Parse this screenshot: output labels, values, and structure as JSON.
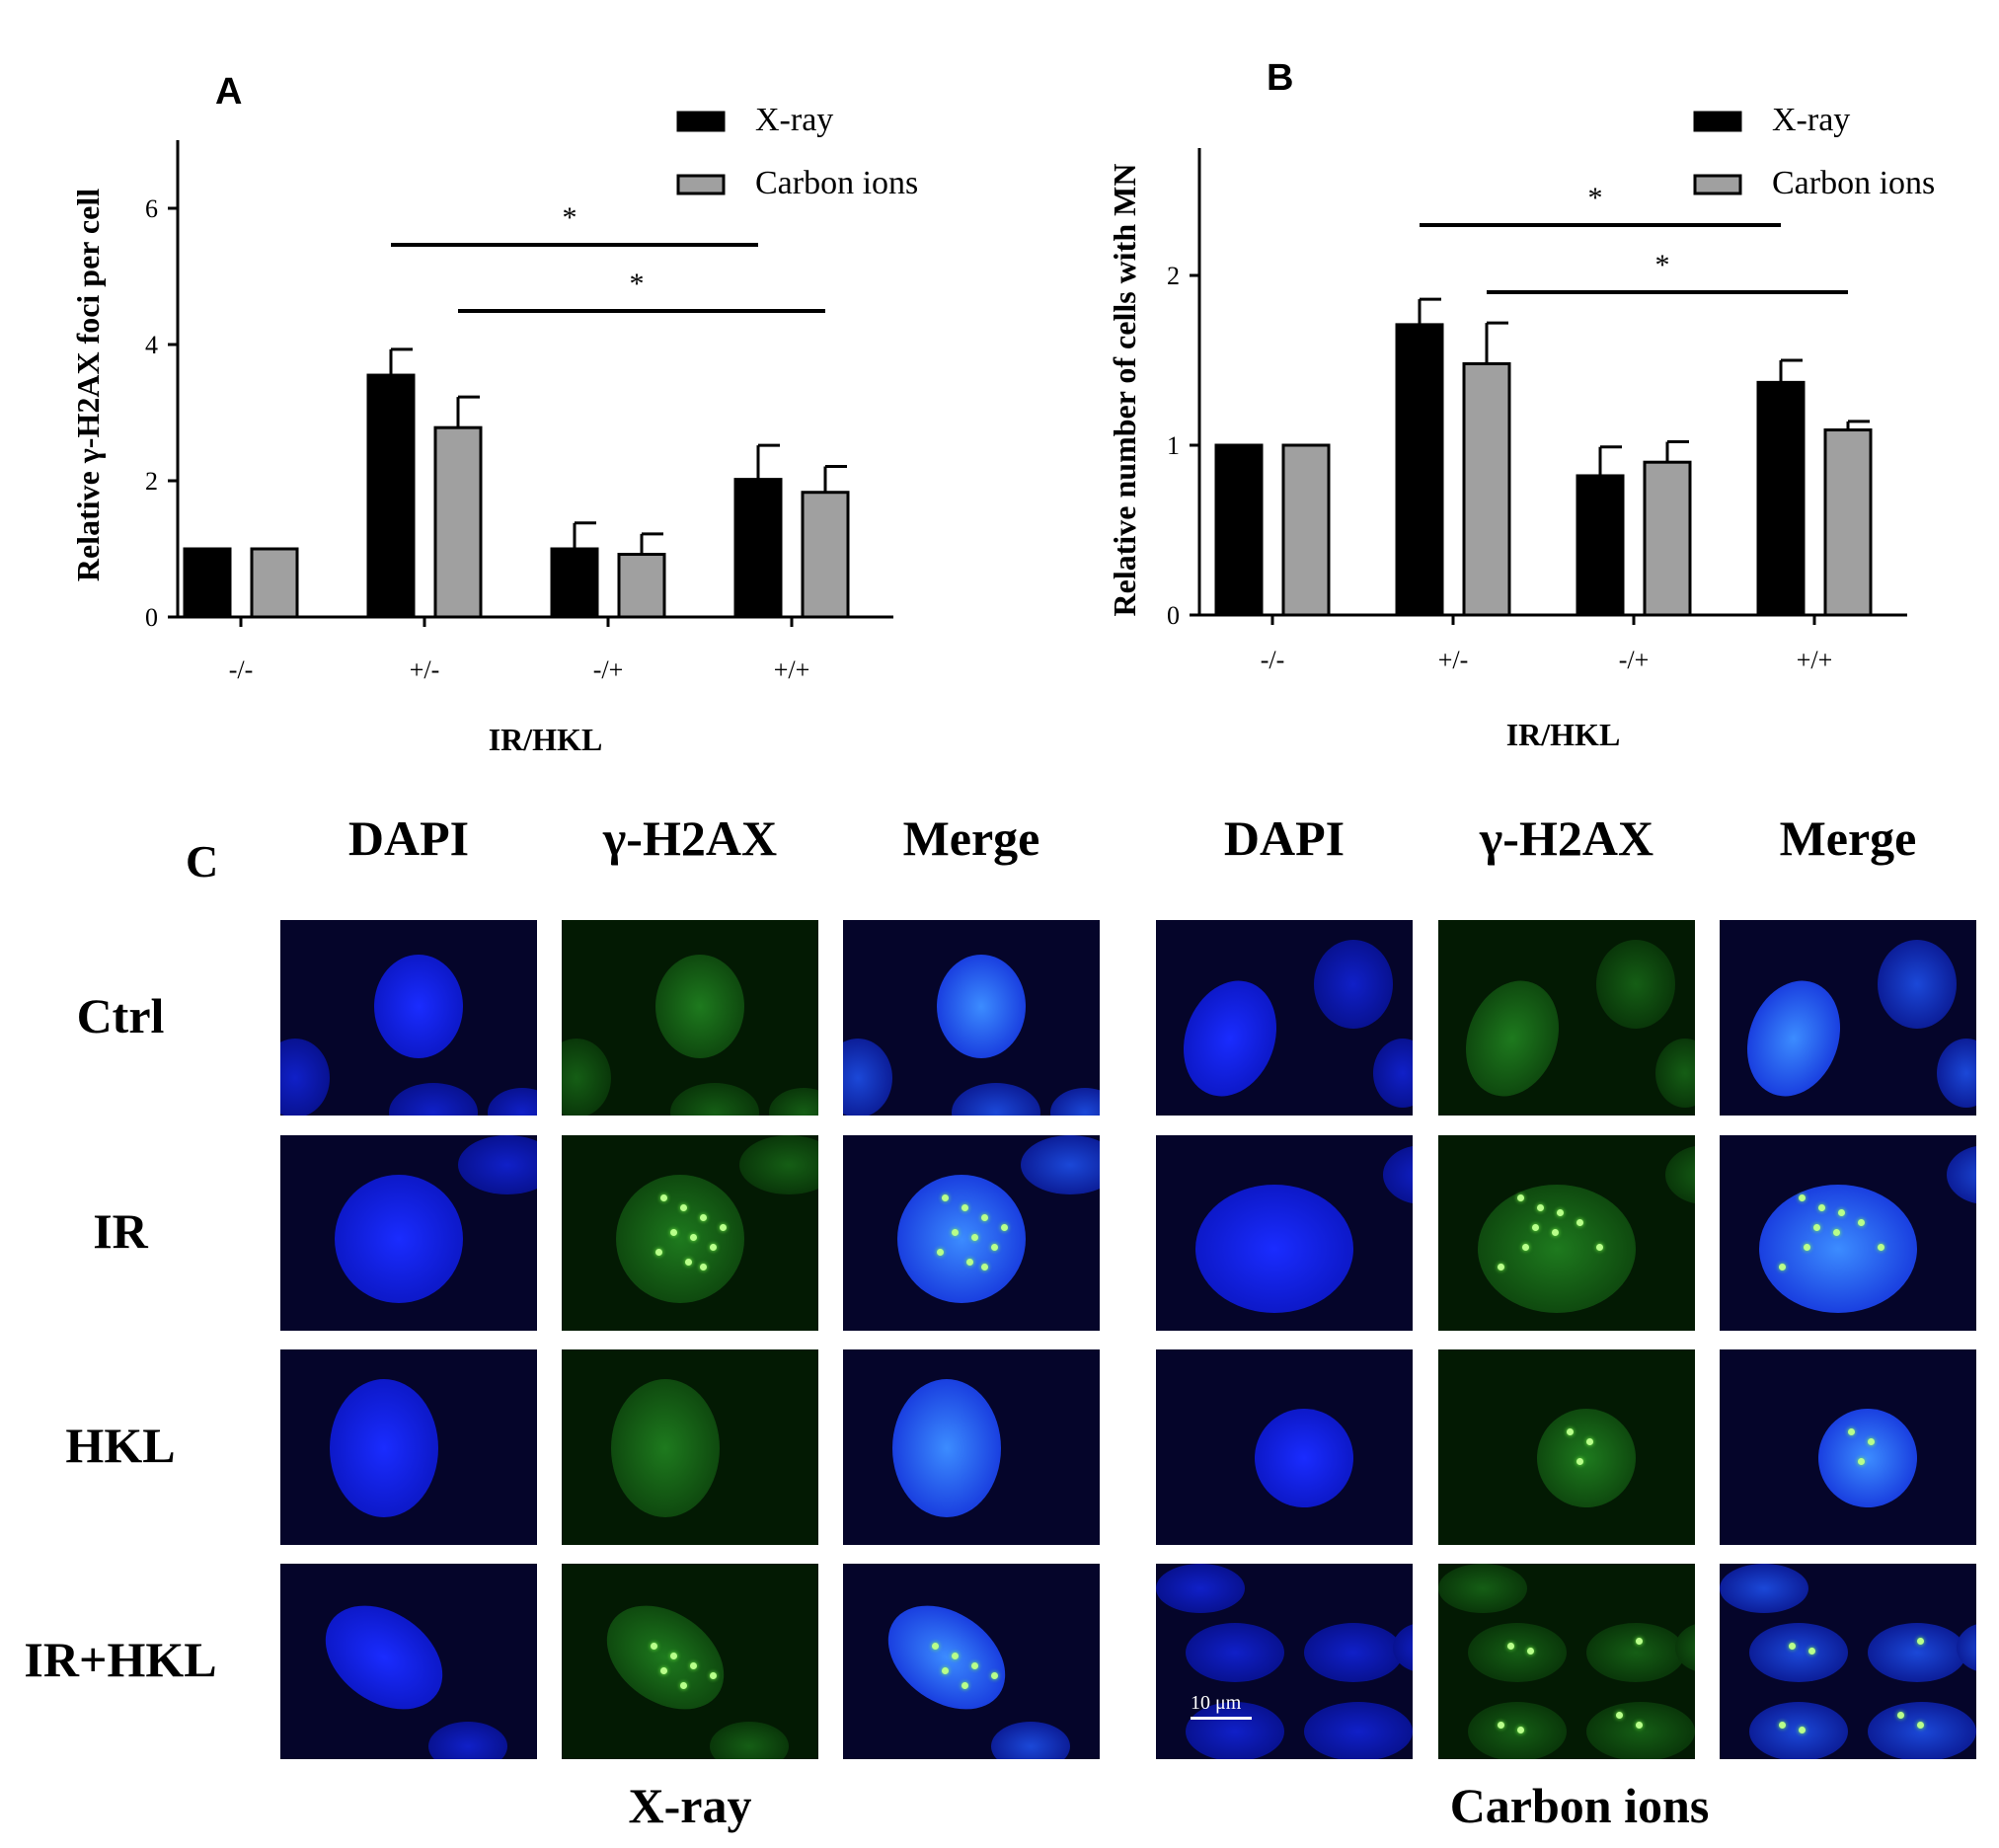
{
  "panels": {
    "A": "A",
    "B": "B",
    "C": "C"
  },
  "chart_data": [
    {
      "type": "bar",
      "panel": "A",
      "ylabel": "Relative γ-H2AX foci per cell",
      "xlabel": "IR/HKL",
      "categories": [
        "-/-",
        "+/-",
        "-/+",
        "+/+"
      ],
      "ylim": [
        0,
        7
      ],
      "yticks": [
        0,
        2,
        4,
        6
      ],
      "series": [
        {
          "name": "X-ray",
          "color": "#000000",
          "values": [
            1.0,
            3.55,
            1.0,
            2.02
          ],
          "errors": [
            0,
            0.38,
            0.38,
            0.5
          ]
        },
        {
          "name": "Carbon ions",
          "color": "#a0a0a0",
          "values": [
            1.0,
            2.78,
            0.92,
            1.83
          ],
          "errors": [
            0,
            0.45,
            0.3,
            0.38
          ]
        }
      ],
      "significance": [
        {
          "label": "*",
          "from": "+/-:X-ray",
          "to": "+/+:X-ray"
        },
        {
          "label": "*",
          "from": "+/-:Carbon ions",
          "to": "+/+:Carbon ions"
        }
      ],
      "legend": "top-right",
      "grid": false
    },
    {
      "type": "bar",
      "panel": "B",
      "ylabel": "Relative number of cells with MN",
      "xlabel": "IR/HKL",
      "categories": [
        "-/-",
        "+/-",
        "-/+",
        "+/+"
      ],
      "ylim": [
        0,
        2.75
      ],
      "yticks": [
        0,
        1,
        2
      ],
      "series": [
        {
          "name": "X-ray",
          "color": "#000000",
          "values": [
            1.0,
            1.71,
            0.82,
            1.37
          ],
          "errors": [
            0,
            0.15,
            0.17,
            0.13
          ]
        },
        {
          "name": "Carbon ions",
          "color": "#a0a0a0",
          "values": [
            1.0,
            1.48,
            0.9,
            1.09
          ],
          "errors": [
            0,
            0.24,
            0.12,
            0.05
          ]
        }
      ],
      "significance": [
        {
          "label": "*",
          "from": "+/-:X-ray",
          "to": "+/+:X-ray"
        },
        {
          "label": "*",
          "from": "+/-:Carbon ions",
          "to": "+/+:Carbon ions"
        }
      ],
      "legend": "top-right",
      "grid": false
    }
  ],
  "microscopy": {
    "column_headers": [
      "DAPI",
      "γ-H2AX",
      "Merge"
    ],
    "row_labels": [
      "Ctrl",
      "IR",
      "HKL",
      "IR+HKL"
    ],
    "group_labels": [
      "X-ray",
      "Carbon ions"
    ],
    "scale_bar": "10 μm"
  }
}
